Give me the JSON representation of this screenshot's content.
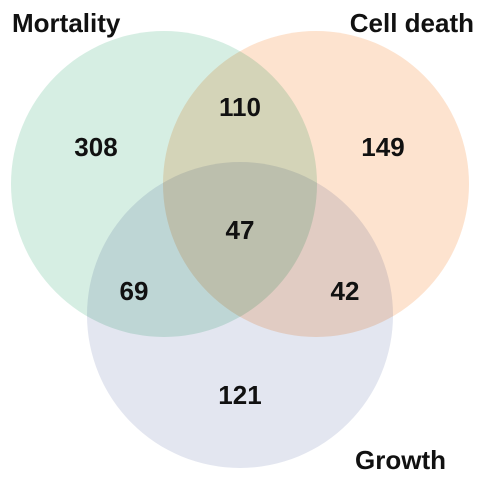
{
  "chart_data": {
    "type": "venn",
    "sets": [
      {
        "name": "Mortality",
        "color": "#d6eee3"
      },
      {
        "name": "Cell death",
        "color": "#fde3cf"
      },
      {
        "name": "Growth",
        "color": "#e3e6f0"
      }
    ],
    "regions": {
      "mortality_only": "308",
      "cell_death_only": "149",
      "growth_only": "121",
      "mortality_cell_death": "110",
      "mortality_growth": "69",
      "cell_death_growth": "42",
      "all_three": "47"
    }
  }
}
